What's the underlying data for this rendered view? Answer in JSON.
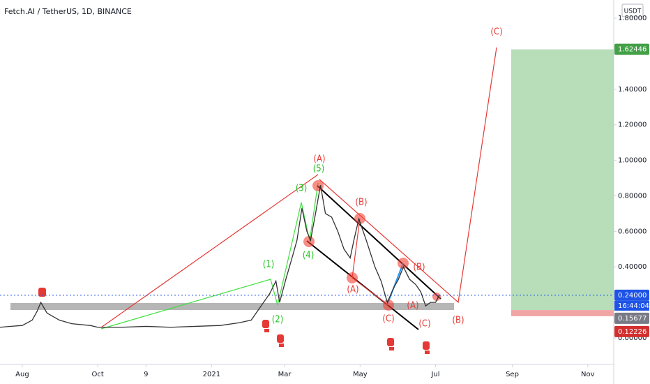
{
  "chart_data": {
    "type": "line",
    "title": "Fetch.AI / TetherUS, 1D, BINANCE",
    "currency": "USDT",
    "countdown": "16:44:04",
    "color": "#333333",
    "x": [
      -18,
      -10,
      0,
      8,
      12,
      15,
      20,
      30,
      40,
      55,
      61,
      80,
      100,
      120,
      140,
      160,
      175,
      185,
      195,
      200,
      205,
      208,
      213,
      218,
      222,
      226,
      230,
      233,
      237,
      241,
      245,
      250,
      255,
      260,
      265,
      268,
      272,
      278,
      285,
      290,
      295,
      300,
      304,
      308,
      313,
      318,
      322,
      326,
      330,
      334,
      337
    ],
    "values": [
      0.06,
      0.065,
      0.07,
      0.1,
      0.15,
      0.2,
      0.14,
      0.1,
      0.08,
      0.07,
      0.06,
      0.06,
      0.065,
      0.06,
      0.065,
      0.07,
      0.085,
      0.1,
      0.2,
      0.25,
      0.32,
      0.2,
      0.33,
      0.45,
      0.55,
      0.73,
      0.6,
      0.55,
      0.7,
      0.86,
      0.7,
      0.68,
      0.6,
      0.5,
      0.45,
      0.55,
      0.67,
      0.55,
      0.4,
      0.32,
      0.2,
      0.28,
      0.33,
      0.4,
      0.33,
      0.3,
      0.26,
      0.18,
      0.2,
      0.2,
      0.24
    ],
    "xlim": [
      -18,
      478
    ],
    "xticks": [
      {
        "value": 0,
        "label": "Aug"
      },
      {
        "value": 61,
        "label": "Oct"
      },
      {
        "value": 100,
        "label": "9"
      },
      {
        "value": 153,
        "label": "2021"
      },
      {
        "value": 212,
        "label": "Mar"
      },
      {
        "value": 273,
        "label": "May"
      },
      {
        "value": 334,
        "label": "Jul"
      },
      {
        "value": 396,
        "label": "Sep"
      },
      {
        "value": 457,
        "label": "Nov"
      }
    ],
    "ylim": [
      -0.1,
      1.8
    ],
    "yticks": [
      {
        "value": 0,
        "label": "0.00000"
      },
      {
        "value": 0.4,
        "label": "0.40000"
      },
      {
        "value": 0.6,
        "label": "0.60000"
      },
      {
        "value": 0.8,
        "label": "0.80000"
      },
      {
        "value": 1,
        "label": "1.00000"
      },
      {
        "value": 1.2,
        "label": "1.20000"
      },
      {
        "value": 1.4,
        "label": "1.40000"
      },
      {
        "value": 1.8,
        "label": "1.80000"
      }
    ],
    "price_tags": [
      {
        "value": 1.62446,
        "color": "#43a047"
      },
      {
        "value": 0.24,
        "label": "0.24000",
        "color": "#1e53e5"
      },
      {
        "value": 0.15677,
        "color": "#787b86"
      },
      {
        "value": 0.12226,
        "color": "#d32f2f"
      }
    ],
    "annotations": [
      {
        "text": "(C)",
        "color": "#e53935"
      },
      {
        "text": "(A)",
        "color": "#e53935"
      },
      {
        "text": "(5)",
        "color": "#22c322"
      },
      {
        "text": "(3)",
        "color": "#22c322"
      },
      {
        "text": "(B)",
        "color": "#e53935"
      },
      {
        "text": "(4)",
        "color": "#22c322"
      },
      {
        "text": "(1)",
        "color": "#22c322"
      },
      {
        "text": "(B)",
        "color": "#e53935"
      },
      {
        "text": "(A)",
        "color": "#e53935"
      },
      {
        "text": "(A)",
        "color": "#e53935"
      },
      {
        "text": "(2)",
        "color": "#22c322"
      },
      {
        "text": "(C)",
        "color": "#e53935"
      },
      {
        "text": "(C)",
        "color": "#e53935"
      },
      {
        "text": "(B)",
        "color": "#e53935"
      }
    ]
  }
}
